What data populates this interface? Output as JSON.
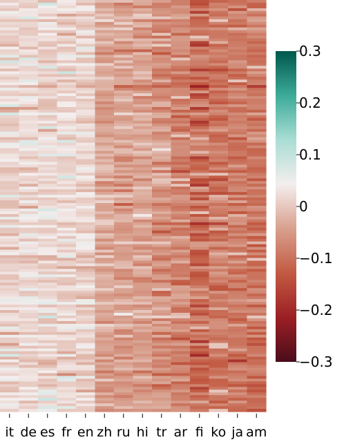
{
  "chart_data": {
    "type": "heatmap",
    "title": "",
    "xlabel": "",
    "ylabel": "",
    "categories": [
      "it",
      "de",
      "es",
      "fr",
      "en",
      "zh",
      "ru",
      "hi",
      "tr",
      "ar",
      "fi",
      "ko",
      "ja",
      "am"
    ],
    "column_means": [
      0.015,
      0.015,
      0.02,
      0.02,
      0.015,
      -0.04,
      -0.045,
      -0.045,
      -0.06,
      -0.075,
      -0.105,
      -0.09,
      -0.09,
      -0.095
    ],
    "column_spread": [
      0.025,
      0.022,
      0.025,
      0.025,
      0.022,
      0.022,
      0.025,
      0.025,
      0.03,
      0.025,
      0.035,
      0.025,
      0.025,
      0.025
    ],
    "row_count": 150,
    "seed": 1234,
    "colorbar": {
      "vmin": -0.3,
      "vmax": 0.3,
      "ticks": [
        0.3,
        0.2,
        0.1,
        0,
        -0.1,
        -0.2,
        -0.3
      ],
      "tick_labels": [
        "0.3",
        "0.2",
        "0.1",
        "0",
        "−0.1",
        "−0.2",
        "−0.3"
      ],
      "colors": [
        "#4a0c1b",
        "#9c1f24",
        "#c25a42",
        "#d8a08e",
        "#f4eeee",
        "#a9ddd4",
        "#3cab98",
        "#00574c"
      ]
    }
  }
}
